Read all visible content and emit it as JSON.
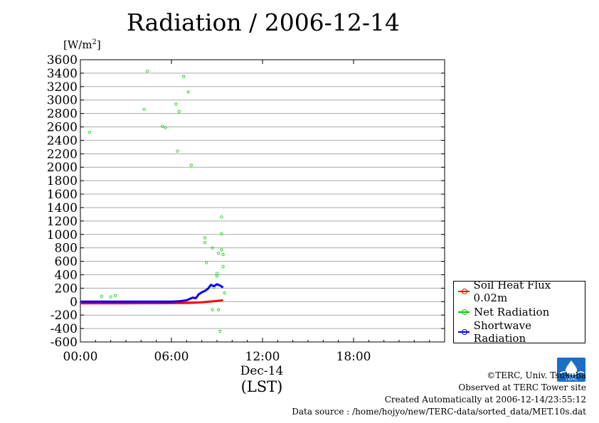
{
  "title": "Radiation / 2006-12-14",
  "y_unit": {
    "main": "[W/m",
    "sup": "2",
    "close": "]"
  },
  "x_axis": {
    "date_label": "Dec-14",
    "tz_label": "(LST)"
  },
  "legend": [
    {
      "label": "Soil Heat Flux 0.02m",
      "color": "#ff0000"
    },
    {
      "label": "Net Radiation",
      "color": "#00cc00"
    },
    {
      "label": "Shortwave Radiation",
      "color": "#0000ff"
    }
  ],
  "footer": {
    "credit": "©TERC, Univ. Tsukuba",
    "site": "Observed at TERC Tower site",
    "created": "Created Automatically at 2006-12-14/23:55:12",
    "source": "Data source : /home/hojyo/new/TERC-data/sorted_data/MET.10s.dat"
  },
  "logo": {
    "text": "TERC",
    "icon": "terc-drop-logo",
    "color": "#1a6fc4"
  },
  "chart_data": {
    "type": "line",
    "title": "Radiation / 2006-12-14",
    "ylabel": "[W/m2]",
    "xlabel": "(LST)",
    "ylim": [
      -600,
      3600
    ],
    "yticks": [
      -600,
      -400,
      -200,
      0,
      200,
      400,
      600,
      800,
      1000,
      1200,
      1400,
      1600,
      1800,
      2000,
      2200,
      2400,
      2600,
      2800,
      3000,
      3200,
      3400,
      3600
    ],
    "xlim": [
      0,
      24
    ],
    "xticks": [
      {
        "value": 0,
        "label": "00:00"
      },
      {
        "value": 6,
        "label": "06:00"
      },
      {
        "value": 12,
        "label": "12:00"
      },
      {
        "value": 18,
        "label": "18:00"
      }
    ],
    "grid": true,
    "legend_position": "right",
    "series": [
      {
        "name": "Soil Heat Flux 0.02m",
        "color": "#ff0000",
        "style": "line",
        "x": [
          0,
          1,
          2,
          3,
          4,
          5,
          6,
          6.5,
          7,
          7.5,
          8,
          8.5,
          9,
          9.4
        ],
        "y": [
          -25,
          -25,
          -24,
          -24,
          -23,
          -23,
          -22,
          -21,
          -19,
          -16,
          -10,
          0,
          12,
          20
        ]
      },
      {
        "name": "Net Radiation",
        "color": "#00cc00",
        "style": "points",
        "x": [
          0.6,
          1.4,
          2.0,
          2.3,
          4.2,
          4.4,
          5.4,
          5.6,
          6.3,
          6.4,
          6.5,
          6.8,
          7.1,
          7.3,
          8.2,
          8.2,
          8.3,
          8.7,
          8.7,
          8.8,
          9.0,
          9.0,
          9.1,
          9.1,
          9.2,
          9.3,
          9.3,
          9.3,
          9.4,
          9.4,
          9.5
        ],
        "y": [
          2520,
          80,
          70,
          90,
          2860,
          3430,
          2610,
          2590,
          2940,
          2240,
          2830,
          3350,
          3120,
          2030,
          950,
          880,
          580,
          800,
          -120,
          210,
          420,
          380,
          -120,
          720,
          -440,
          770,
          1260,
          1010,
          700,
          520,
          130
        ]
      },
      {
        "name": "Shortwave Radiation",
        "color": "#0000ff",
        "style": "line",
        "x": [
          0,
          1,
          2,
          3,
          4,
          5,
          6,
          6.5,
          7,
          7.4,
          7.6,
          7.8,
          8.0,
          8.2,
          8.4,
          8.6,
          8.8,
          9.0,
          9.2,
          9.4
        ],
        "y": [
          0,
          0,
          0,
          0,
          0,
          0,
          0,
          5,
          20,
          60,
          50,
          110,
          140,
          160,
          190,
          250,
          230,
          260,
          240,
          210
        ]
      }
    ]
  }
}
